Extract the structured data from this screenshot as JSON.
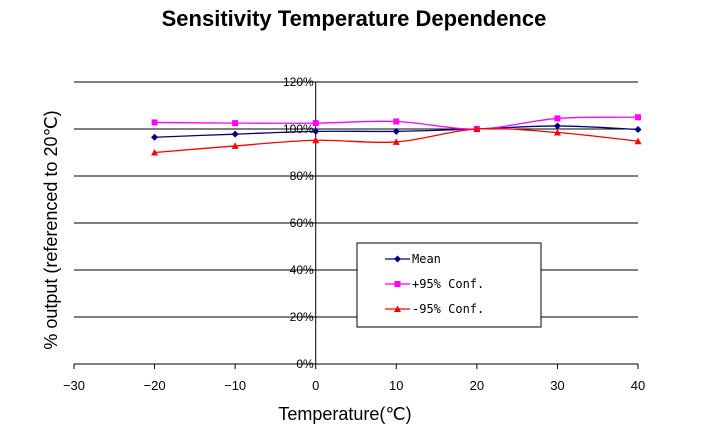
{
  "chart_data": {
    "type": "line",
    "title": "Sensitivity Temperature Dependence",
    "xlabel": "Temperature(℃)",
    "ylabel": "% output (referenced to 20℃)",
    "xlim": [
      -30,
      40
    ],
    "ylim": [
      0,
      120
    ],
    "x_ticks": [
      "-30",
      "-20",
      "-10",
      "0",
      "10",
      "20",
      "30",
      "40"
    ],
    "y_ticks": [
      "0%",
      "20%",
      "40%",
      "60%",
      "80%",
      "100%",
      "120%"
    ],
    "grid": "horizontal",
    "legend_position": "lower-right",
    "x": [
      -20,
      -10,
      0,
      10,
      20,
      30,
      40
    ],
    "series": [
      {
        "name": "Mean",
        "color": "#00007f",
        "marker": "diamond",
        "values": [
          96.5,
          97.8,
          99.0,
          99.0,
          100.0,
          101.3,
          99.8
        ]
      },
      {
        "name": "+95% Conf.",
        "color": "#ff00ff",
        "marker": "square",
        "values": [
          102.8,
          102.5,
          102.5,
          103.2,
          100.0,
          104.5,
          105.0
        ]
      },
      {
        "name": "-95% Conf.",
        "color": "#ff0000",
        "marker": "triangle",
        "values": [
          90.0,
          92.8,
          95.2,
          94.5,
          100.0,
          98.5,
          94.8
        ]
      }
    ]
  }
}
